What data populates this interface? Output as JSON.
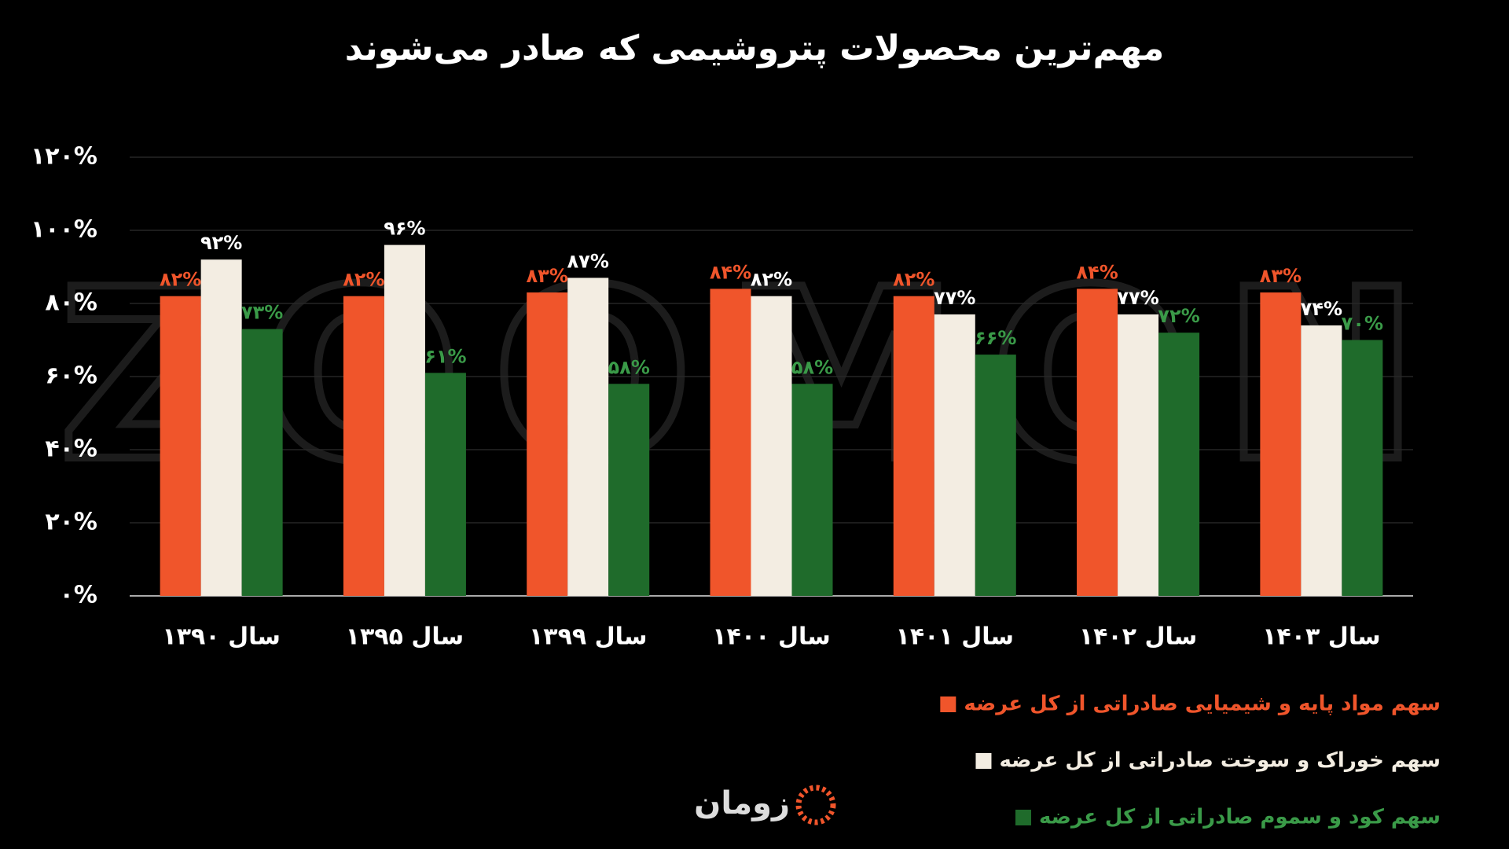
{
  "chart_data": {
    "type": "bar",
    "title": "مهم‌ترین محصولات پتروشیمی که صادر می‌شوند",
    "watermark": "ZOOMON",
    "logo": "زومان",
    "categories": [
      "سال ۱۳۹۰",
      "سال ۱۳۹۵",
      "سال ۱۳۹۹",
      "سال ۱۴۰۰",
      "سال ۱۴۰۱",
      "سال ۱۴۰۲",
      "سال ۱۴۰۳"
    ],
    "series": [
      {
        "name": "سهم مواد پایه و شیمیایی صادراتی از کل عرضه",
        "color": "#f0552b",
        "values": [
          82,
          82,
          83,
          84,
          82,
          84,
          83
        ],
        "value_labels": [
          "۸۲%",
          "۸۲%",
          "۸۳%",
          "۸۴%",
          "۸۲%",
          "۸۴%",
          "۸۳%"
        ]
      },
      {
        "name": "سهم خوراک و سوخت صادراتی از کل عرضه",
        "color": "#f3ede2",
        "values": [
          92,
          96,
          87,
          82,
          77,
          77,
          74
        ],
        "value_labels": [
          "۹۲%",
          "۹۶%",
          "۸۷%",
          "۸۲%",
          "۷۷%",
          "۷۷%",
          "۷۴%"
        ]
      },
      {
        "name": "سهم کود و سموم صادراتی از کل عرضه",
        "color": "#1f6b2b",
        "values": [
          73,
          61,
          58,
          58,
          66,
          72,
          70
        ],
        "value_labels": [
          "۷۳%",
          "۶۱%",
          "۵۸%",
          "۵۸%",
          "۶۶%",
          "۷۲%",
          "۷۰%"
        ]
      }
    ],
    "ylim": [
      0,
      120
    ],
    "yticks": [
      {
        "value": 0,
        "label": "۰%"
      },
      {
        "value": 20,
        "label": "۲۰%"
      },
      {
        "value": 40,
        "label": "۴۰%"
      },
      {
        "value": 60,
        "label": "۶۰%"
      },
      {
        "value": 80,
        "label": "۸۰%"
      },
      {
        "value": 100,
        "label": "۱۰۰%"
      },
      {
        "value": 120,
        "label": "۱۲۰%"
      }
    ],
    "grid": true
  }
}
